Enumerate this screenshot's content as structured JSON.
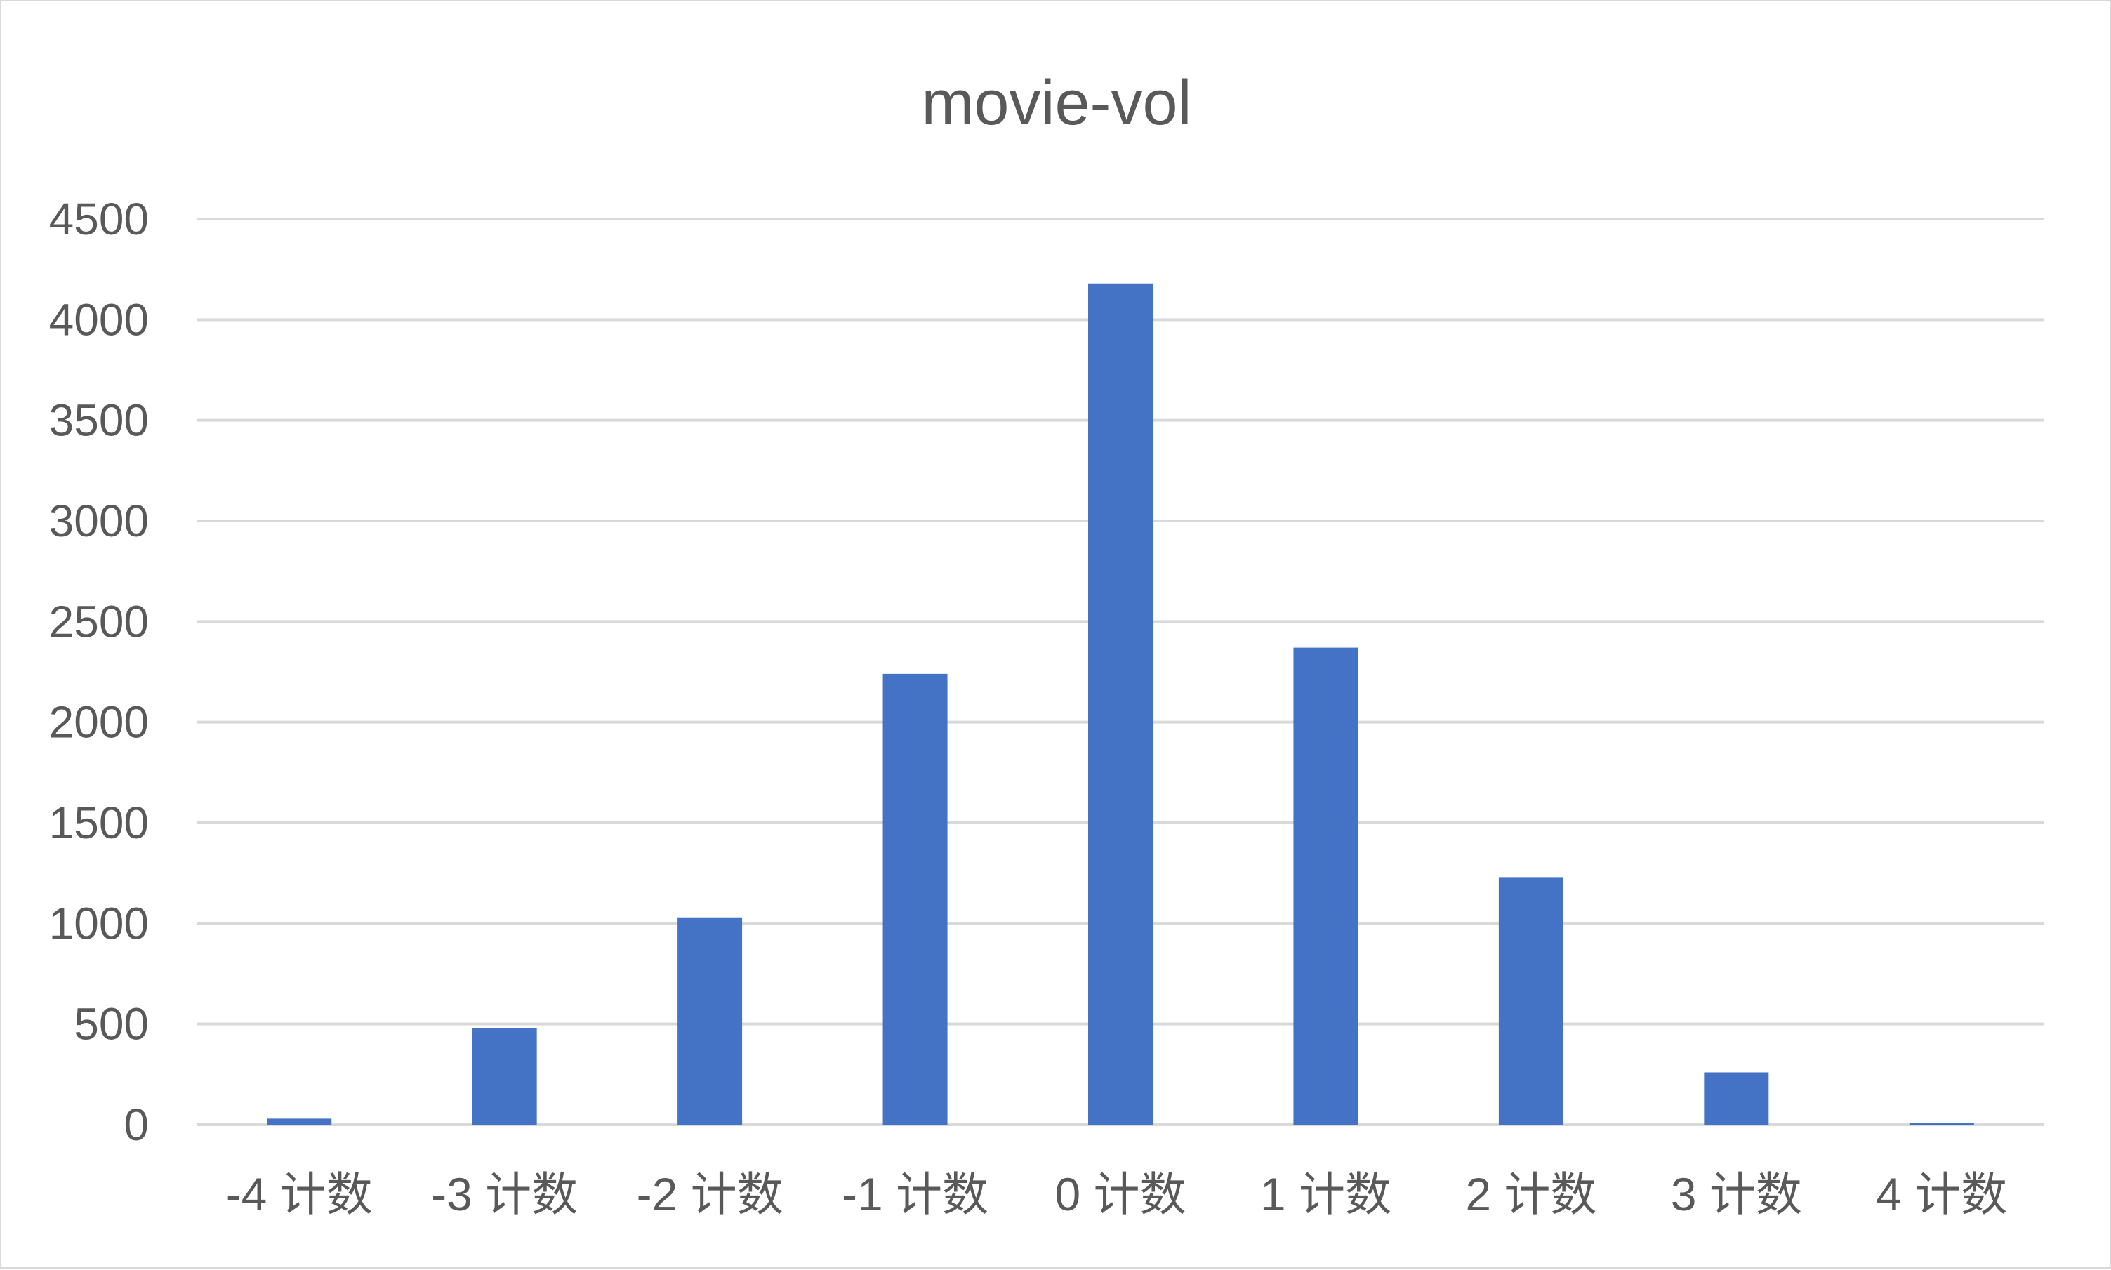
{
  "chart_data": {
    "type": "bar",
    "title": "movie-vol",
    "xlabel": "",
    "ylabel": "",
    "categories": [
      "-4 计数",
      "-3 计数",
      "-2 计数",
      "-1 计数",
      "0 计数",
      "1 计数",
      "2 计数",
      "3 计数",
      "4 计数"
    ],
    "series": [
      {
        "values": [
          30,
          480,
          1030,
          2240,
          4180,
          2370,
          1230,
          260,
          10
        ],
        "color": "#4472c4"
      }
    ],
    "ylim": [
      0,
      4500
    ],
    "yticks": [
      0,
      500,
      1000,
      1500,
      2000,
      2500,
      3000,
      3500,
      4000,
      4500
    ],
    "ytick_labels": [
      "0",
      "500",
      "1000",
      "1500",
      "2000",
      "2500",
      "3000",
      "3500",
      "4000",
      "4500"
    ],
    "grid": true,
    "legend": "none",
    "gridline_color": "#d9d9d9",
    "text_color": "#595959"
  }
}
